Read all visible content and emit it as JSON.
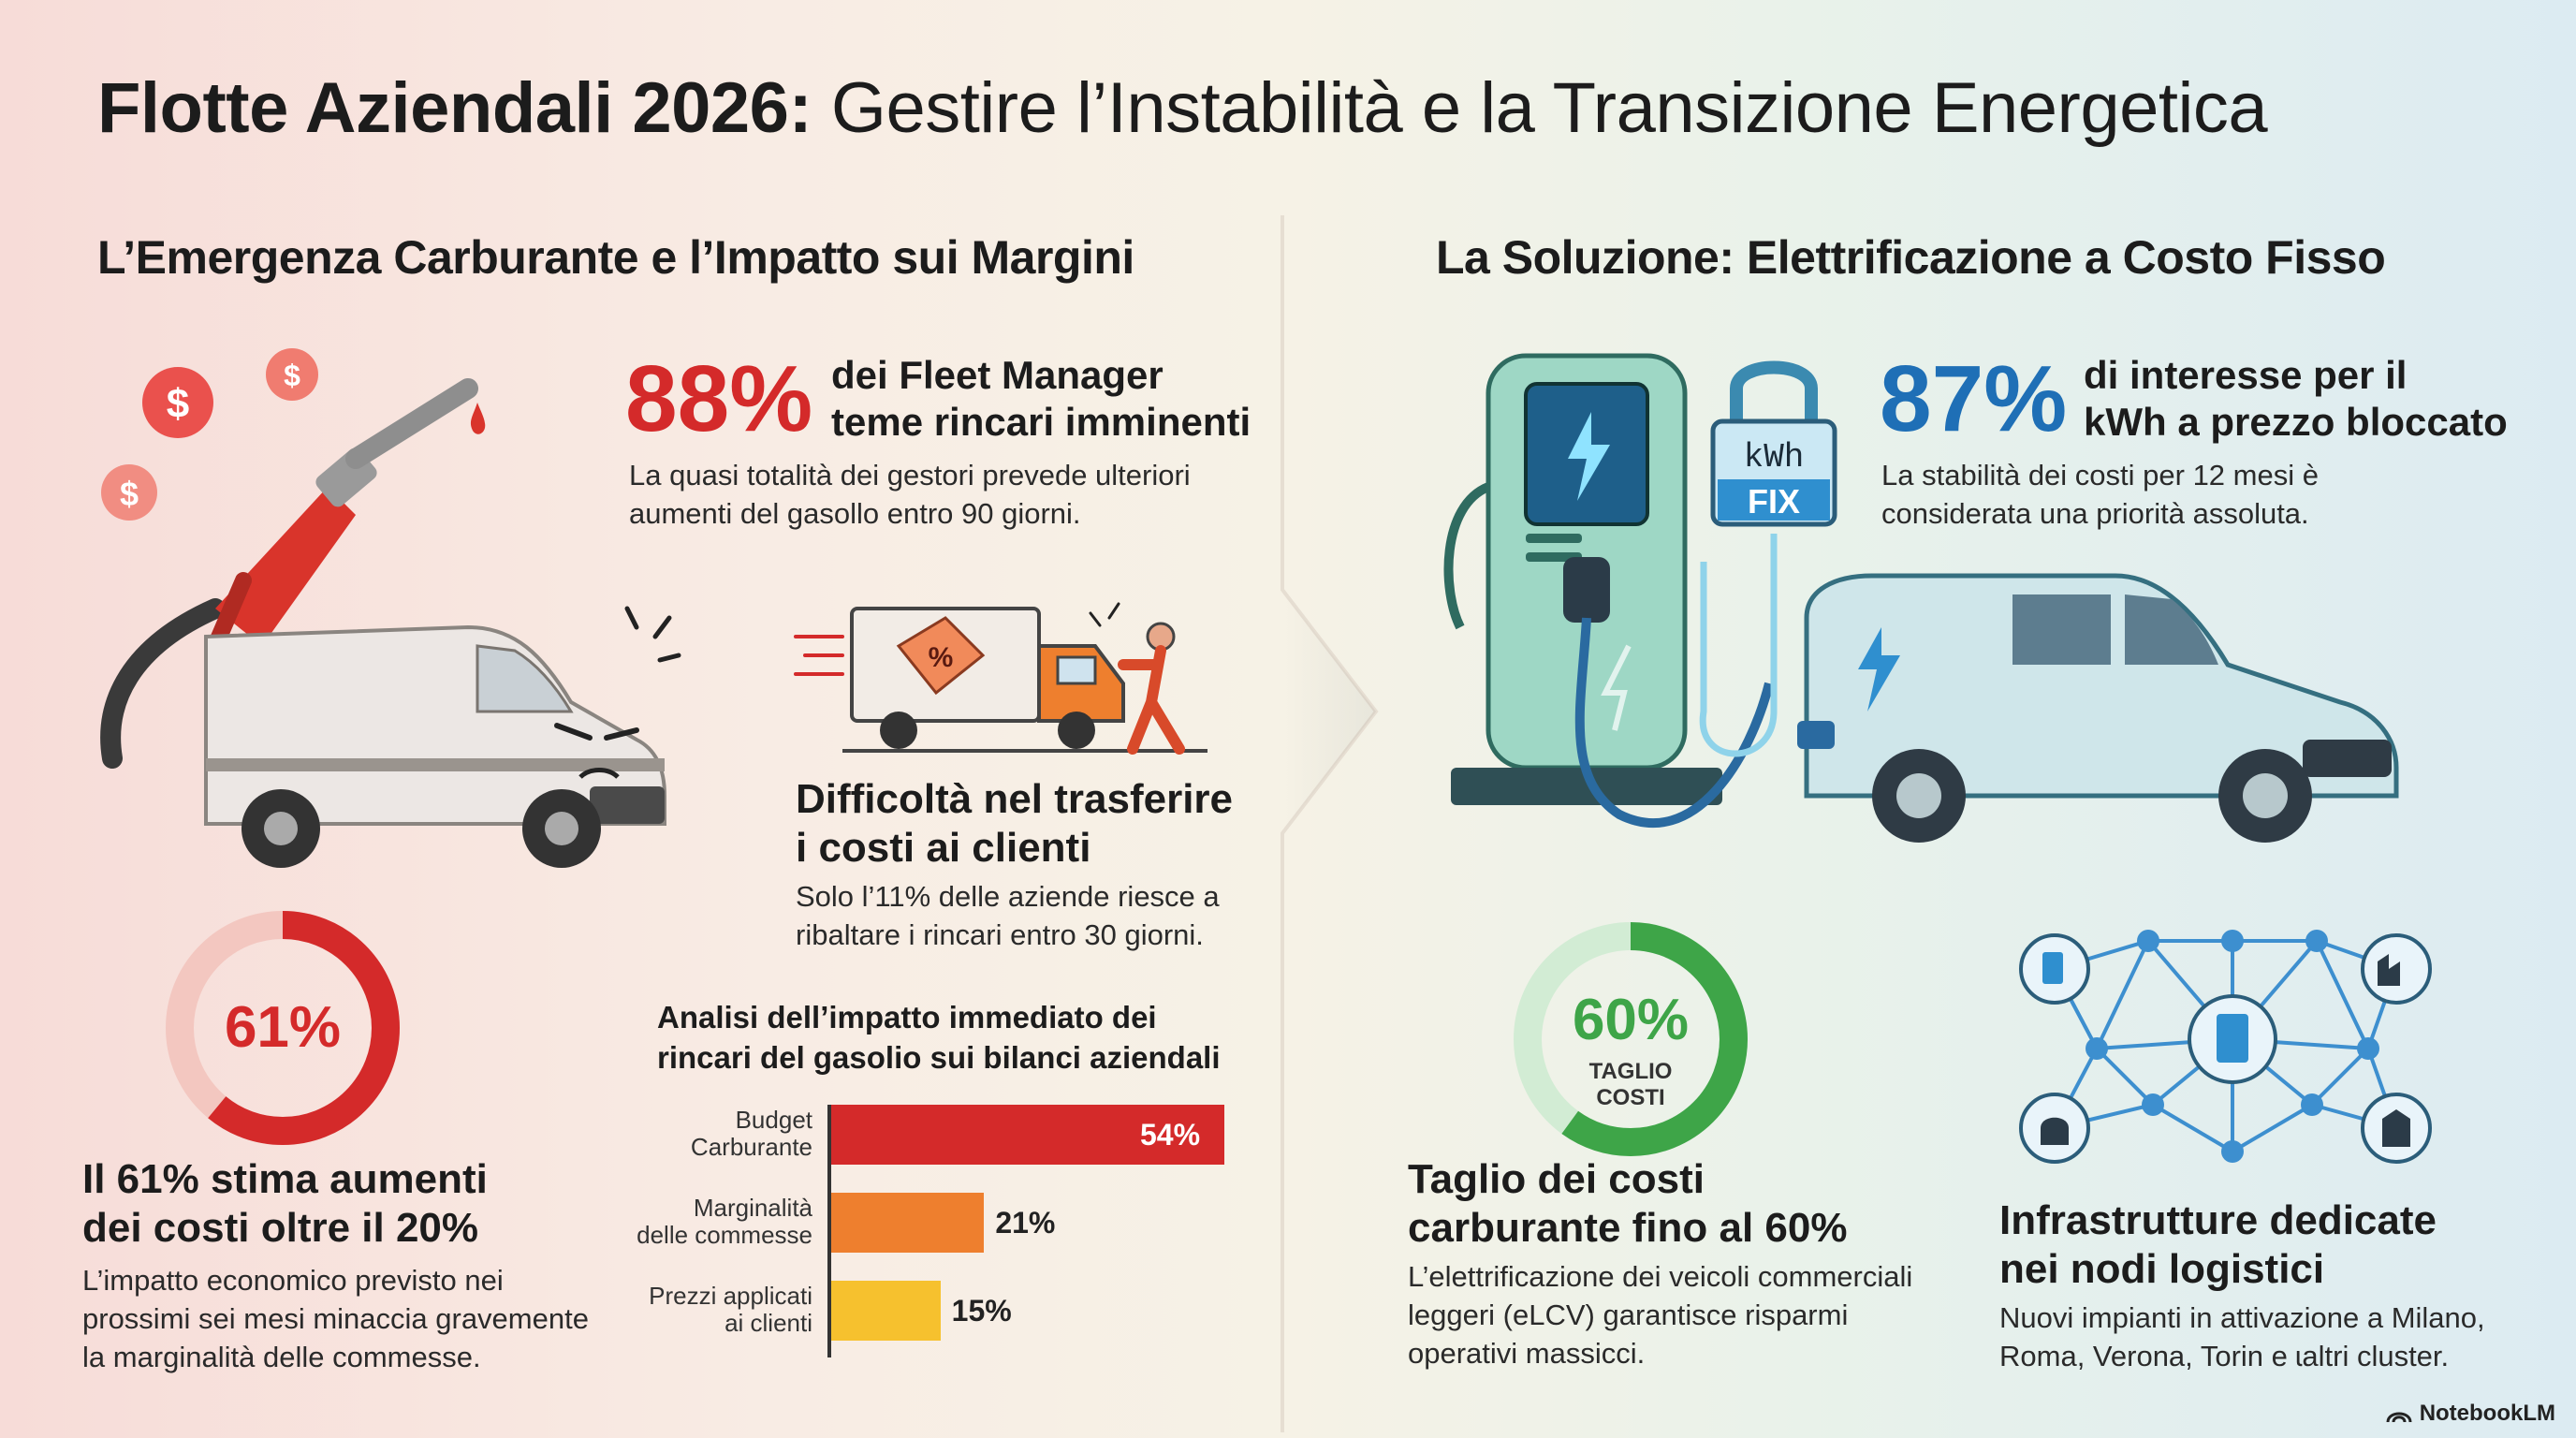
{
  "header": {
    "title_bold": "Flotte Aziendali 2026:",
    "title_rest": "Gestire l’Instabilità e la Transizione Energetica"
  },
  "left": {
    "heading": "L’Emergenza Carburante e l’Impatto sui Margini",
    "stat1": {
      "value": "88%",
      "label_line1": "dei Fleet Manager",
      "label_line2": "teme rincari imminenti",
      "desc_line1": "La quasi totalità dei gestori prevede ulteriori",
      "desc_line2": "aumenti del gasollo entro 90 giorni."
    },
    "transfer": {
      "heading_line1": "Difficoltà nel trasferire",
      "heading_line2": "i costi ai clienti",
      "desc_line1": "Solo l’11% delle aziende riesce a",
      "desc_line2": "ribaltare i rincari entro 30 giorni."
    },
    "donut": {
      "value": "61%",
      "percent": 61,
      "heading_line1": "Il 61% stima aumenti",
      "heading_line2": "dei costi oltre il 20%",
      "desc_line1": "L’impatto economico previsto nei",
      "desc_line2": "prossimi sei mesi minaccia gravemente",
      "desc_line3": "la marginalità delle commesse."
    },
    "chart_title_line1": "Analisi dell’impatto immediato dei",
    "chart_title_line2": "rincari del gasolio sui bilanci aziendali",
    "tag_symbol": "%",
    "dollar_symbol": "$",
    "fuel_pump_icon": "fuel-nozzle-icon",
    "van_icon": "angry-van-icon"
  },
  "chart_data": {
    "type": "bar",
    "orientation": "horizontal",
    "title": "Analisi dell’impatto immediato dei rincari del gasolio sui bilanci aziendali",
    "categories": [
      "Budget Carburante",
      "Marginalità delle commesse",
      "Prezzi applicati ai clienti"
    ],
    "category_lines": [
      [
        "Budget",
        "Carburante"
      ],
      [
        "Marginalità",
        "delle commesse"
      ],
      [
        "Prezzi applicati",
        "ai clienti"
      ]
    ],
    "values": [
      54,
      21,
      15
    ],
    "value_labels": [
      "54%",
      "21%",
      "15%"
    ],
    "colors": [
      "#d42a2a",
      "#ee7f2e",
      "#f6c12e"
    ],
    "xlim": [
      0,
      54
    ]
  },
  "right": {
    "heading": "La Soluzione: Elettrificazione a Costo Fisso",
    "stat1": {
      "value": "87%",
      "label_line1": "di interesse per il",
      "label_line2": "kWh a prezzo bloccato",
      "desc_line1": "La stabilità dei costi per 12 mesi è",
      "desc_line2": "considerata una priorità assoluta."
    },
    "lock": {
      "line1": "kWh",
      "line2": "FIX"
    },
    "donut": {
      "value": "60%",
      "percent": 60,
      "sub_line1": "TAGLIO",
      "sub_line2": "COSTI",
      "heading_line1": "Taglio dei costi",
      "heading_line2": "carburante fino al 60%",
      "desc_line1": "L’elettrificazione dei veicoli commerciali",
      "desc_line2": "leggeri (eLCV) garantisce risparmi",
      "desc_line3": "operativi massicci."
    },
    "infra": {
      "heading_line1": "Infrastrutture dedicate",
      "heading_line2": "nei nodi logistici",
      "desc_line1": "Nuovi impianti in attivazione a Milano,",
      "desc_line2": "Roma, Verona, Torin e ɩaltri cluster."
    }
  },
  "footer": {
    "brand": "NotebookLM"
  },
  "colors": {
    "red": "#d42a2a",
    "orange": "#ee7f2e",
    "yellow": "#f6c12e",
    "blue": "#1f6fb6",
    "green": "#3ea548",
    "teal": "#7cc5b0"
  }
}
